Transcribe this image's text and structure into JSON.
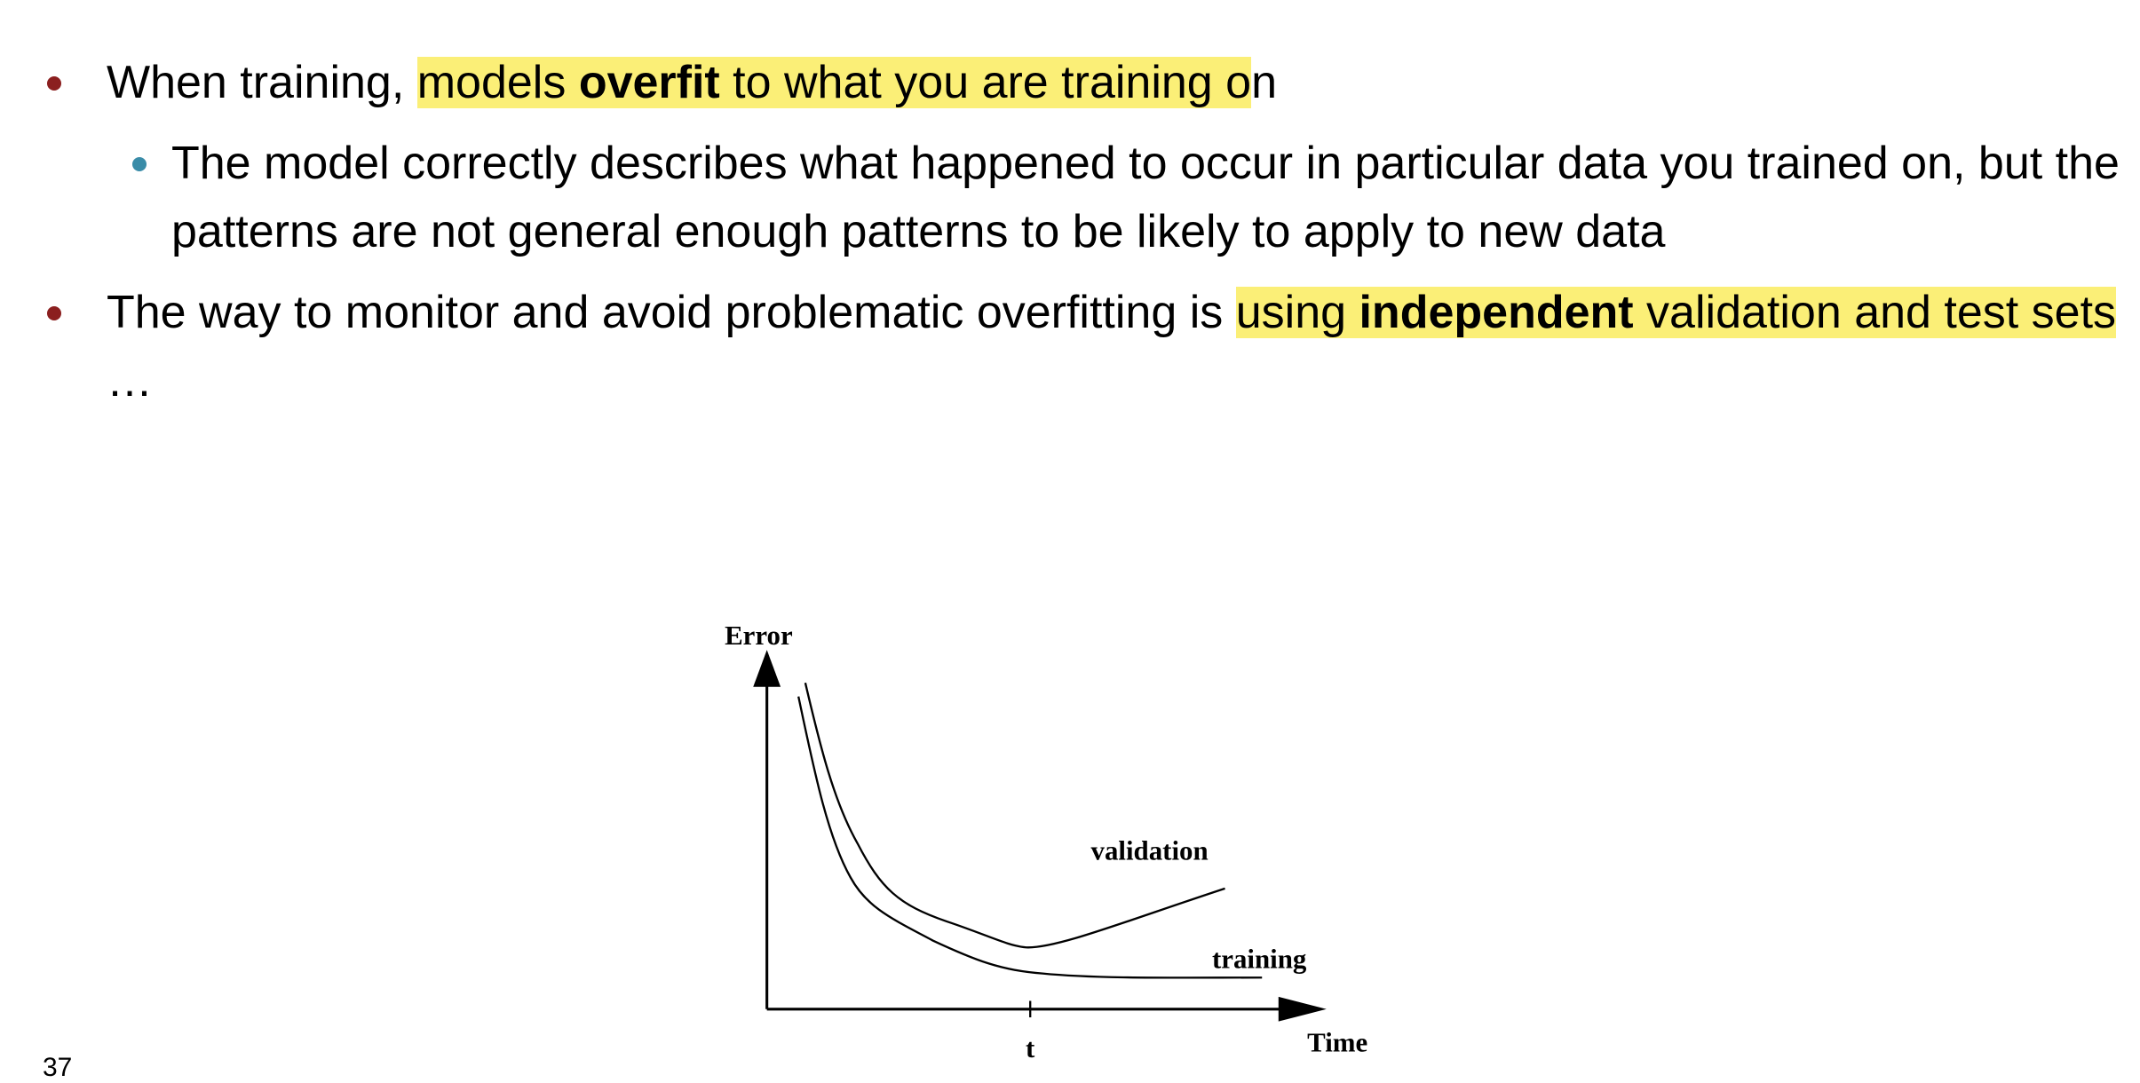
{
  "slide": {
    "bullets": [
      {
        "runs": [
          {
            "text": "When training, "
          },
          {
            "text": "models ",
            "highlight": true
          },
          {
            "text": "overfit",
            "highlight": true,
            "bold": true
          },
          {
            "text": " to what you are training o",
            "highlight": true
          },
          {
            "text": "n"
          }
        ],
        "sub_bullets": [
          {
            "runs": [
              {
                "text": "The model correctly describes what happened to occur in particular data you trained on, but the patterns are not general enough patterns to be likely to apply to new data"
              }
            ]
          }
        ]
      },
      {
        "runs": [
          {
            "text": "The way to monitor and avoid problematic overfitting is "
          },
          {
            "text": "using ",
            "highlight": true
          },
          {
            "text": "independent",
            "highlight": true,
            "bold": true
          },
          {
            "text": " validation and test sets",
            "highlight": true
          },
          {
            "text": " …"
          }
        ],
        "sub_bullets": []
      }
    ],
    "figure": {
      "y_label": "Error",
      "x_label": "Time",
      "tick_label": "t",
      "curves": [
        "validation",
        "training"
      ]
    },
    "page_number": "37"
  }
}
